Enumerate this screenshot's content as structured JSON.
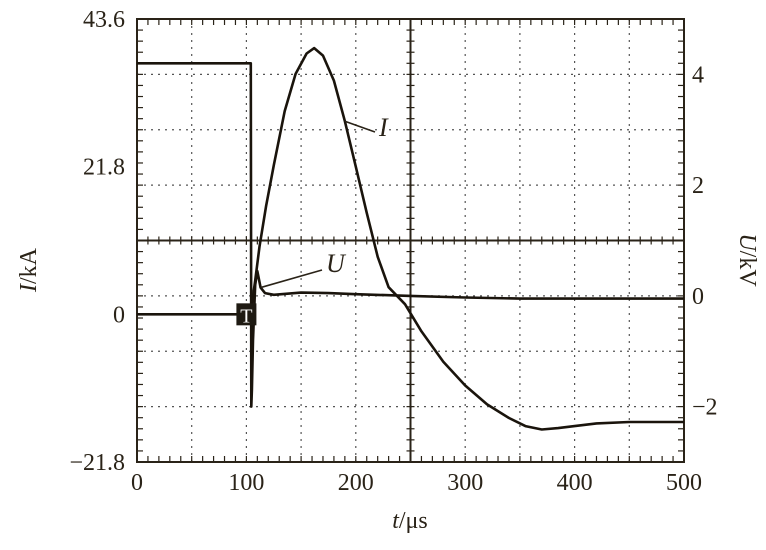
{
  "chart_data": {
    "type": "line",
    "x": {
      "label_var": "t",
      "label_unit": "/μs",
      "lim": [
        0,
        500
      ],
      "ticks": [
        0,
        100,
        200,
        300,
        400,
        500
      ],
      "tick_labels": [
        "0",
        "100",
        "200",
        "300",
        "400",
        "500"
      ]
    },
    "y_left": {
      "label_var": "I",
      "label_unit": "/kA",
      "lim": [
        -21.8,
        43.6
      ],
      "ticks": [
        -21.8,
        0,
        21.8,
        43.6
      ],
      "tick_labels": [
        "−21.8",
        "0",
        "21.8",
        "43.6"
      ]
    },
    "y_right": {
      "label_var": "U",
      "label_unit": "/kV",
      "lim": [
        -3,
        5
      ],
      "ticks": [
        -2,
        0,
        2,
        4
      ],
      "tick_labels": [
        "−2",
        "0",
        "2",
        "4"
      ]
    },
    "grid": true,
    "trigger_marker": {
      "label": "T",
      "t": 100,
      "I": 0
    },
    "series": [
      {
        "name": "I",
        "axis": "left",
        "points": [
          [
            0,
            0
          ],
          [
            100,
            0
          ],
          [
            103,
            0
          ],
          [
            105,
            1.5
          ],
          [
            108,
            5
          ],
          [
            112,
            10
          ],
          [
            118,
            16
          ],
          [
            125,
            22
          ],
          [
            135,
            30
          ],
          [
            145,
            35.5
          ],
          [
            155,
            38.5
          ],
          [
            162,
            39.3
          ],
          [
            170,
            38.2
          ],
          [
            180,
            34.5
          ],
          [
            190,
            28.5
          ],
          [
            200,
            21.8
          ],
          [
            210,
            15
          ],
          [
            220,
            8.5
          ],
          [
            230,
            4
          ],
          [
            245,
            1.5
          ],
          [
            260,
            -2.5
          ],
          [
            280,
            -7
          ],
          [
            300,
            -10.5
          ],
          [
            320,
            -13.3
          ],
          [
            340,
            -15.3
          ],
          [
            355,
            -16.5
          ],
          [
            370,
            -17
          ],
          [
            385,
            -16.8
          ],
          [
            400,
            -16.5
          ],
          [
            420,
            -16.1
          ],
          [
            450,
            -15.9
          ],
          [
            480,
            -15.9
          ],
          [
            500,
            -15.9
          ]
        ]
      },
      {
        "name": "U",
        "axis": "right",
        "points": [
          [
            0,
            4.2
          ],
          [
            100,
            4.2
          ],
          [
            104,
            4.2
          ],
          [
            104.5,
            -2
          ],
          [
            105,
            -1.7
          ],
          [
            106,
            -0.8
          ],
          [
            108,
            0.2
          ],
          [
            110,
            0.45
          ],
          [
            113,
            0.15
          ],
          [
            117,
            0.05
          ],
          [
            125,
            0.02
          ],
          [
            150,
            0.06
          ],
          [
            175,
            0.05
          ],
          [
            200,
            0.03
          ],
          [
            250,
            0
          ],
          [
            300,
            -0.03
          ],
          [
            350,
            -0.05
          ],
          [
            400,
            -0.05
          ],
          [
            450,
            -0.05
          ],
          [
            500,
            -0.05
          ]
        ]
      }
    ]
  }
}
